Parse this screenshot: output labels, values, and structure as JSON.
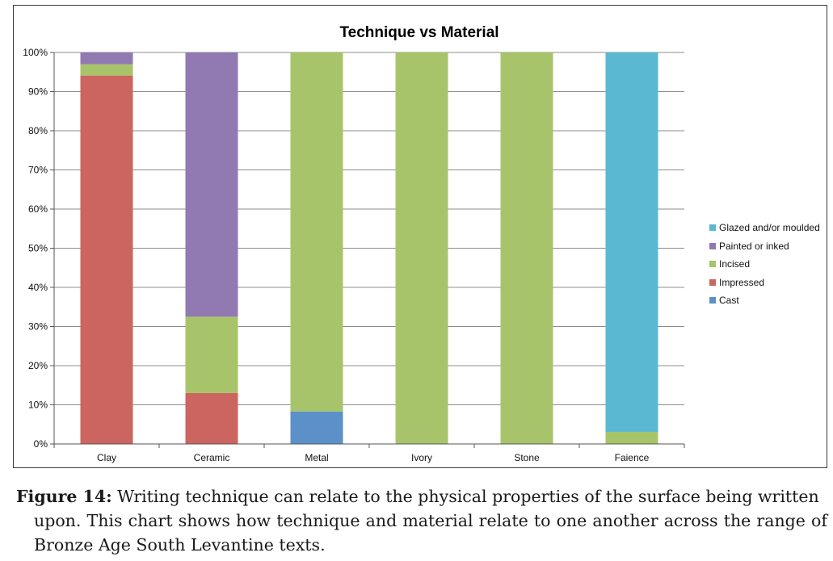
{
  "chart_data": {
    "type": "bar",
    "stacked": true,
    "title": "Technique vs Material",
    "xlabel": "",
    "ylabel": "",
    "ylim": [
      0,
      100
    ],
    "yticks": [
      "0%",
      "10%",
      "20%",
      "30%",
      "40%",
      "50%",
      "60%",
      "70%",
      "80%",
      "90%",
      "100%"
    ],
    "categories": [
      "Clay",
      "Ceramic",
      "Metal",
      "Ivory",
      "Stone",
      "Faience"
    ],
    "series": [
      {
        "name": "Cast",
        "color": "#5b90c8",
        "values": [
          0,
          0,
          8.3,
          0,
          0,
          0
        ]
      },
      {
        "name": "Impressed",
        "color": "#cc6560",
        "values": [
          94.1,
          13.0,
          0,
          0,
          0,
          0
        ]
      },
      {
        "name": "Incised",
        "color": "#a8c46b",
        "values": [
          2.9,
          19.5,
          91.7,
          100,
          100,
          3.1
        ]
      },
      {
        "name": "Painted or inked",
        "color": "#917ab2",
        "values": [
          3.0,
          67.5,
          0,
          0,
          0,
          0
        ]
      },
      {
        "name": "Glazed and/or moulded",
        "color": "#5bb8d3",
        "values": [
          0,
          0,
          0,
          0,
          0,
          96.9
        ]
      }
    ],
    "legend": {
      "position": "right",
      "order": [
        "Glazed and/or moulded",
        "Painted or inked",
        "Incised",
        "Impressed",
        "Cast"
      ]
    },
    "grid": true
  },
  "caption": {
    "figure_label": "Figure 14:",
    "text_line1": " Writing technique can relate to the physical properties of the surface being written",
    "text_rest": "upon. This chart shows how technique and material relate to one another across the range of Bronze Age South Levantine texts."
  }
}
